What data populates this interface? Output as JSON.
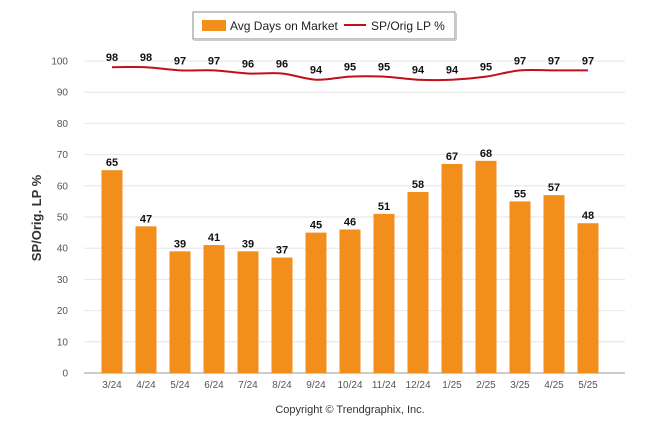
{
  "chart_data": {
    "type": "bar",
    "categories": [
      "3/24",
      "4/24",
      "5/24",
      "6/24",
      "7/24",
      "8/24",
      "9/24",
      "10/24",
      "11/24",
      "12/24",
      "1/25",
      "2/25",
      "3/25",
      "4/25",
      "5/25"
    ],
    "series": [
      {
        "name": "Avg Days on Market",
        "type": "bar",
        "color": "#f28e1c",
        "values": [
          65,
          47,
          39,
          41,
          39,
          37,
          45,
          46,
          51,
          58,
          67,
          68,
          55,
          57,
          48
        ]
      },
      {
        "name": "SP/Orig LP %",
        "type": "line",
        "color": "#c0101a",
        "values": [
          98,
          98,
          97,
          97,
          96,
          96,
          94,
          95,
          95,
          94,
          94,
          95,
          97,
          97,
          97
        ]
      }
    ],
    "ylabel": "SP/Orig. LP %",
    "ylim": [
      0,
      100
    ],
    "yticks": [
      0,
      10,
      20,
      30,
      40,
      50,
      60,
      70,
      80,
      90,
      100
    ],
    "grid": true,
    "legend_position": "top-center"
  },
  "footer": {
    "copyright": "Copyright © Trendgraphix, Inc."
  }
}
